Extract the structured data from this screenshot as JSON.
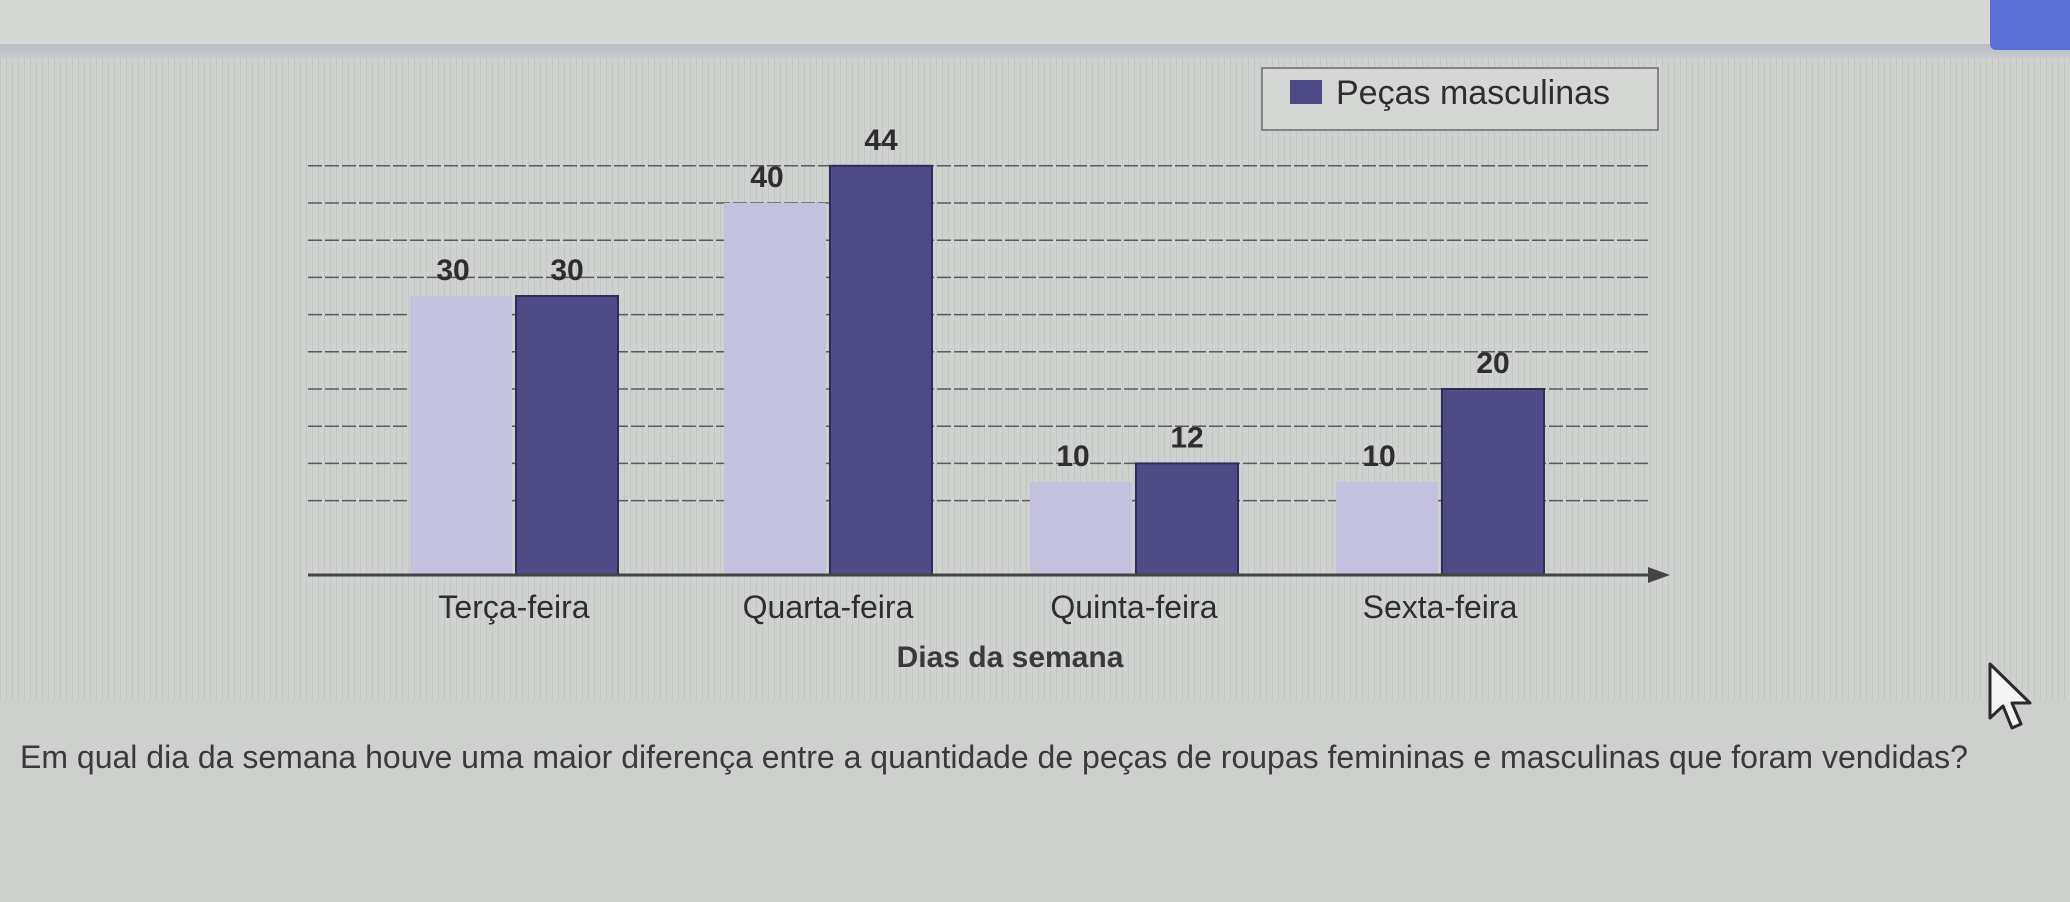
{
  "chart_data": {
    "type": "bar",
    "categories": [
      "Terça-feira",
      "Quarta-feira",
      "Quinta-feira",
      "Sexta-feira"
    ],
    "series": [
      {
        "values": [
          30,
          40,
          10,
          10
        ],
        "color": "#c4c1dc"
      },
      {
        "name": "Peças masculinas",
        "values": [
          30,
          44,
          12,
          20
        ],
        "color": "#4e4b86"
      }
    ],
    "title": "",
    "xlabel": "Dias da semana",
    "ylabel": "",
    "ylim": [
      0,
      48
    ],
    "grid": true,
    "legend_position": "top-right"
  },
  "question": {
    "text": "Em qual dia da semana houve uma maior diferença entre a quantidade de peças de roupas femininas e masculinas que foram vendidas?"
  },
  "icons": {
    "cursor": "mouse-pointer-icon"
  }
}
